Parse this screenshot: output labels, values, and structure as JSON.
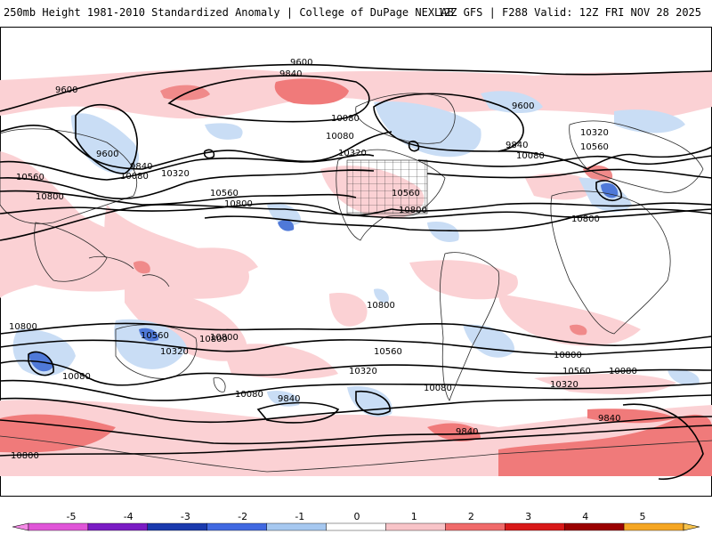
{
  "header": {
    "left_title": "250mb Height 1981-2010 Standardized Anomaly | College of DuPage NEXLAB",
    "right_title": "12Z GFS | F288 Valid: 12Z FRI NOV 28 2025"
  },
  "map": {
    "variable": "250mb Height Standardized Anomaly",
    "contour_labels": [
      {
        "id": "c1",
        "text": "9600"
      },
      {
        "id": "c2",
        "text": "9840"
      },
      {
        "id": "c3",
        "text": "9600"
      },
      {
        "id": "c4",
        "text": "10080"
      },
      {
        "id": "c5",
        "text": "10080"
      },
      {
        "id": "c6",
        "text": "9600"
      },
      {
        "id": "c7",
        "text": "9600"
      },
      {
        "id": "c8",
        "text": "9840"
      },
      {
        "id": "c9",
        "text": "10080"
      },
      {
        "id": "c10",
        "text": "10320"
      },
      {
        "id": "c11",
        "text": "10320"
      },
      {
        "id": "c12",
        "text": "9840"
      },
      {
        "id": "c13",
        "text": "10080"
      },
      {
        "id": "c14",
        "text": "10320"
      },
      {
        "id": "c15",
        "text": "10560"
      },
      {
        "id": "c16",
        "text": "10560"
      },
      {
        "id": "c17",
        "text": "10800"
      },
      {
        "id": "c18",
        "text": "10560"
      },
      {
        "id": "c19",
        "text": "10560"
      },
      {
        "id": "c20",
        "text": "10800"
      },
      {
        "id": "c21",
        "text": "10800"
      },
      {
        "id": "c22",
        "text": "10800"
      },
      {
        "id": "c23",
        "text": "10800"
      },
      {
        "id": "c24",
        "text": "10800"
      },
      {
        "id": "c25",
        "text": "10560"
      },
      {
        "id": "c26",
        "text": "10320"
      },
      {
        "id": "c27",
        "text": "10800"
      },
      {
        "id": "c28",
        "text": "10080"
      },
      {
        "id": "c29",
        "text": "10560"
      },
      {
        "id": "c30",
        "text": "10320"
      },
      {
        "id": "c31",
        "text": "10080"
      },
      {
        "id": "c32",
        "text": "9840"
      },
      {
        "id": "c33",
        "text": "10080"
      },
      {
        "id": "c34",
        "text": "10800"
      },
      {
        "id": "c35",
        "text": "10560"
      },
      {
        "id": "c36",
        "text": "10080"
      },
      {
        "id": "c37",
        "text": "10320"
      },
      {
        "id": "c38",
        "text": "9840"
      },
      {
        "id": "c39",
        "text": "9840"
      },
      {
        "id": "c40",
        "text": "10800"
      },
      {
        "id": "c41",
        "text": "10800"
      }
    ]
  },
  "colorbar": {
    "ticks": [
      "-5",
      "-4",
      "-3",
      "-2",
      "-1",
      "0",
      "1",
      "2",
      "3",
      "4",
      "5"
    ],
    "colors": [
      "#e055d8",
      "#7a1cc4",
      "#1a3aae",
      "#4169e1",
      "#a6c8f0",
      "#ffffff",
      "#f8c4c8",
      "#f06a6a",
      "#d81818",
      "#9a0000",
      "#f5a623"
    ],
    "low_arrow_color": "#f58ae6",
    "high_arrow_color": "#f7c24a"
  }
}
